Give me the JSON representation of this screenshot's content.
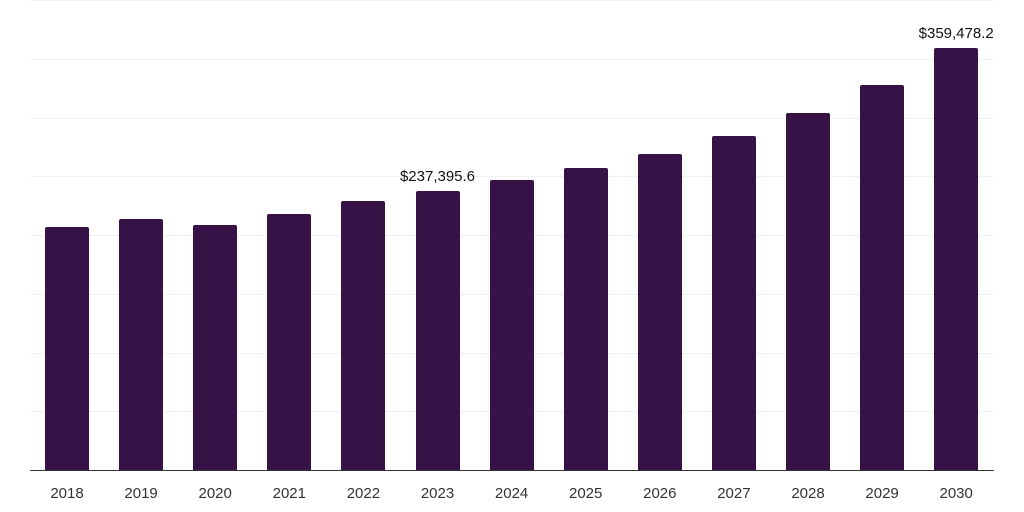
{
  "chart_data": {
    "type": "bar",
    "title": "",
    "xlabel": "",
    "ylabel": "",
    "ylim": [
      0,
      400000
    ],
    "grid": true,
    "bar_color": "#371246",
    "categories": [
      "2018",
      "2019",
      "2020",
      "2021",
      "2022",
      "2023",
      "2024",
      "2025",
      "2026",
      "2027",
      "2028",
      "2029",
      "2030"
    ],
    "values": [
      206600,
      213400,
      208300,
      217700,
      228800,
      237395.6,
      246700,
      257000,
      268900,
      284300,
      303900,
      327800,
      359478.2
    ],
    "data_labels": [
      {
        "index": 5,
        "text": "$237,395.6"
      },
      {
        "index": 12,
        "text": "$359,478.2"
      }
    ]
  }
}
